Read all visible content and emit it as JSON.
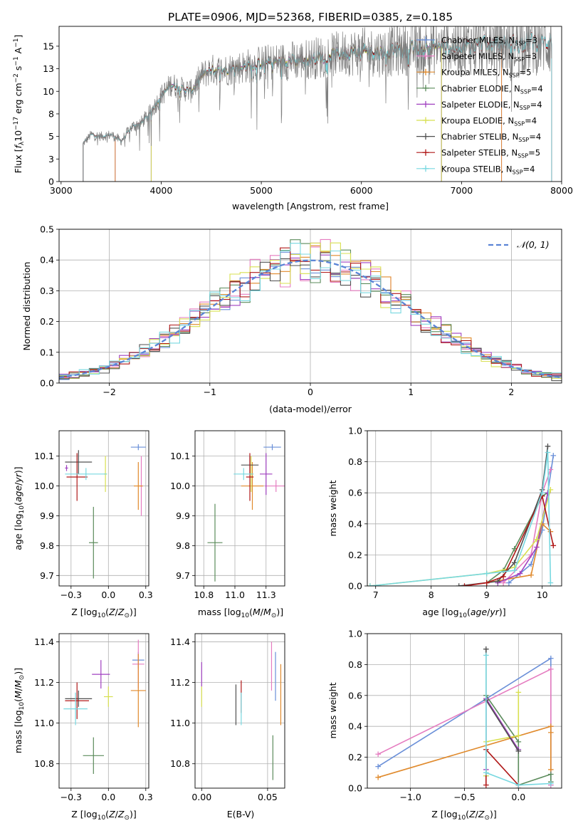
{
  "figure": {
    "title": "PLATE=0906, MJD=52368, FIBERID=0385, z=0.185"
  },
  "colors": {
    "Chabrier MILES": "#6a8fd8",
    "Salpeter MILES": "#e57cc0",
    "Kroupa MILES": "#e08a2c",
    "Chabrier ELODIE": "#5b8b5b",
    "Salpeter ELODIE": "#a040c0",
    "Kroupa ELODIE": "#d8e050",
    "Chabrier STELIB": "#505050",
    "Salpeter STELIB": "#b01818",
    "Kroupa STELIB": "#78d8e0",
    "data": "#808080",
    "normal": "#5b84d6"
  },
  "chart_data": [
    {
      "id": "spectrum",
      "type": "line",
      "xlabel": "wavelength [Angstrom, rest frame]",
      "xlim": [
        2980,
        8000
      ],
      "ylim": [
        0,
        17.2
      ],
      "xticks": [
        3000,
        4000,
        5000,
        6000,
        7000,
        8000
      ],
      "yticks": [
        0.0,
        2.5,
        5.0,
        7.5,
        10.0,
        12.5,
        15.0
      ],
      "legend_location": "upper right",
      "legend": [
        {
          "name": "Chabrier MILES",
          "nssp": "3"
        },
        {
          "name": "Salpeter MILES",
          "nssp": "3"
        },
        {
          "name": "Kroupa MILES",
          "nssp": "5"
        },
        {
          "name": "Chabrier ELODIE",
          "nssp": "4"
        },
        {
          "name": "Salpeter ELODIE",
          "nssp": "4"
        },
        {
          "name": "Kroupa ELODIE",
          "nssp": "4"
        },
        {
          "name": "Chabrier STELIB",
          "nssp": "4"
        },
        {
          "name": "Salpeter STELIB",
          "nssp": "5"
        },
        {
          "name": "Kroupa STELIB",
          "nssp": "4"
        }
      ],
      "model_ranges": {
        "Chabrier MILES": [
          3540,
          7400
        ],
        "Salpeter MILES": [
          3540,
          7400
        ],
        "Kroupa MILES": [
          3540,
          7400
        ],
        "Chabrier ELODIE": [
          3900,
          6800
        ],
        "Salpeter ELODIE": [
          3900,
          6800
        ],
        "Kroupa ELODIE": [
          3900,
          6800
        ],
        "Chabrier STELIB": [
          3220,
          7900
        ],
        "Salpeter STELIB": [
          3220,
          7900
        ],
        "Kroupa STELIB": [
          3220,
          7900
        ]
      },
      "flux_envelope": [
        [
          3220,
          4.2
        ],
        [
          3300,
          5.2
        ],
        [
          3400,
          5.0
        ],
        [
          3500,
          5.2
        ],
        [
          3600,
          4.5
        ],
        [
          3700,
          6.0
        ],
        [
          3800,
          6.5
        ],
        [
          3900,
          7.8
        ],
        [
          4000,
          9.5
        ],
        [
          4100,
          10.8
        ],
        [
          4200,
          10.3
        ],
        [
          4300,
          10.0
        ],
        [
          4400,
          11.7
        ],
        [
          4500,
          12.4
        ],
        [
          4600,
          12.3
        ],
        [
          4800,
          12.7
        ],
        [
          5000,
          13.1
        ],
        [
          5200,
          13.3
        ],
        [
          5400,
          13.5
        ],
        [
          5600,
          13.8
        ],
        [
          5800,
          14.2
        ],
        [
          6000,
          14.4
        ],
        [
          6200,
          14.3
        ],
        [
          6400,
          14.6
        ],
        [
          6600,
          14.8
        ],
        [
          6800,
          14.9
        ],
        [
          7000,
          15.0
        ],
        [
          7200,
          15.2
        ],
        [
          7400,
          15.3
        ],
        [
          7600,
          15.4
        ],
        [
          7900,
          15.5
        ]
      ]
    },
    {
      "id": "residuals",
      "type": "histogram",
      "xlabel": "(data-model)/error",
      "ylabel": "Normed distribution",
      "xlim": [
        -2.5,
        2.5
      ],
      "ylim": [
        0,
        0.5
      ],
      "xticks": [
        -2,
        -1,
        0,
        1,
        2
      ],
      "yticks": [
        0.0,
        0.1,
        0.2,
        0.3,
        0.4,
        0.5
      ],
      "bin_width": 0.1,
      "reference_curve": "normal(0,1)",
      "legend_location": "upper right"
    },
    {
      "id": "age_vs_Z",
      "type": "errorbar",
      "xlabel": "Z [log10(Z/Z⊙)]",
      "ylabel": "age  [log10(age/yr)]",
      "xlim": [
        -0.33,
        0.27
      ],
      "ylim": [
        9.665,
        10.185
      ],
      "xticks": [
        -0.25,
        0.0,
        0.25
      ],
      "yticks": [
        9.7,
        9.8,
        9.9,
        10.0,
        10.1
      ],
      "points": [
        {
          "model": "Chabrier MILES",
          "x": 0.2,
          "xerr": 0.05,
          "y": 10.13,
          "yerr": 0.01
        },
        {
          "model": "Salpeter MILES",
          "x": 0.22,
          "xerr": 0.01,
          "y": 10.0,
          "yerr": 0.1
        },
        {
          "model": "Kroupa MILES",
          "x": 0.2,
          "xerr": 0.03,
          "y": 10.0,
          "yerr": 0.08
        },
        {
          "model": "Chabrier ELODIE",
          "x": -0.1,
          "xerr": 0.03,
          "y": 9.81,
          "yerr": 0.12
        },
        {
          "model": "Salpeter ELODIE",
          "x": -0.28,
          "xerr": 0.01,
          "y": 10.06,
          "yerr": 0.01
        },
        {
          "model": "Kroupa ELODIE",
          "x": -0.02,
          "xerr": 0.01,
          "y": 10.04,
          "yerr": 0.06
        },
        {
          "model": "Chabrier STELIB",
          "x": -0.2,
          "xerr": 0.09,
          "y": 10.08,
          "yerr": 0.04
        },
        {
          "model": "Salpeter STELIB",
          "x": -0.21,
          "xerr": 0.07,
          "y": 10.03,
          "yerr": 0.08
        },
        {
          "model": "Kroupa STELIB",
          "x": -0.15,
          "xerr": 0.14,
          "y": 10.04,
          "yerr": 0.02
        }
      ]
    },
    {
      "id": "age_vs_mass",
      "type": "errorbar",
      "xlabel": "mass [log10(M/M⊙)]",
      "xlim": [
        10.68,
        11.4
      ],
      "ylim": [
        9.665,
        10.185
      ],
      "xticks": [
        10.75,
        11.0,
        11.25
      ],
      "yticks": [
        9.7,
        9.8,
        9.9,
        10.0,
        10.1
      ],
      "points": [
        {
          "model": "Chabrier MILES",
          "x": 11.3,
          "xerr": 0.07,
          "y": 10.13,
          "yerr": 0.01
        },
        {
          "model": "Salpeter MILES",
          "x": 11.33,
          "xerr": 0.09,
          "y": 10.0,
          "yerr": 0.02
        },
        {
          "model": "Kroupa MILES",
          "x": 11.14,
          "xerr": 0.09,
          "y": 10.0,
          "yerr": 0.08
        },
        {
          "model": "Chabrier ELODIE",
          "x": 10.84,
          "xerr": 0.06,
          "y": 9.81,
          "yerr": 0.13
        },
        {
          "model": "Salpeter ELODIE",
          "x": 11.25,
          "xerr": 0.05,
          "y": 10.04,
          "yerr": 0.07
        },
        {
          "model": "Kroupa ELODIE",
          "x": 11.13,
          "xerr": 0.01,
          "y": 10.04,
          "yerr": 0.06
        },
        {
          "model": "Chabrier STELIB",
          "x": 11.12,
          "xerr": 0.07,
          "y": 10.07,
          "yerr": 0.03
        },
        {
          "model": "Salpeter STELIB",
          "x": 11.12,
          "xerr": 0.03,
          "y": 10.03,
          "yerr": 0.08
        },
        {
          "model": "Kroupa STELIB",
          "x": 11.07,
          "xerr": 0.08,
          "y": 10.04,
          "yerr": 0.02
        }
      ]
    },
    {
      "id": "mass_vs_Z",
      "type": "errorbar",
      "xlabel": "Z [log10(Z/Z⊙)]",
      "ylabel": "mass [log10(M/M⊙)]",
      "xlim": [
        -0.33,
        0.27
      ],
      "ylim": [
        10.68,
        11.44
      ],
      "xticks": [
        -0.25,
        0.0,
        0.25
      ],
      "yticks": [
        10.8,
        11.0,
        11.2,
        11.4
      ],
      "points": [
        {
          "model": "Chabrier MILES",
          "x": 0.2,
          "xerr": 0.04,
          "y": 11.31,
          "yerr": 0.04
        },
        {
          "model": "Salpeter MILES",
          "x": 0.2,
          "xerr": 0.04,
          "y": 11.29,
          "yerr": 0.12
        },
        {
          "model": "Kroupa MILES",
          "x": 0.2,
          "xerr": 0.05,
          "y": 11.16,
          "yerr": 0.18
        },
        {
          "model": "Chabrier ELODIE",
          "x": -0.1,
          "xerr": 0.07,
          "y": 10.84,
          "yerr": 0.09
        },
        {
          "model": "Salpeter ELODIE",
          "x": -0.05,
          "xerr": 0.06,
          "y": 11.24,
          "yerr": 0.07
        },
        {
          "model": "Kroupa ELODIE",
          "x": 0.0,
          "xerr": 0.03,
          "y": 11.13,
          "yerr": 0.05
        },
        {
          "model": "Chabrier STELIB",
          "x": -0.2,
          "xerr": 0.09,
          "y": 11.12,
          "yerr": 0.04
        },
        {
          "model": "Salpeter STELIB",
          "x": -0.21,
          "xerr": 0.08,
          "y": 11.11,
          "yerr": 0.09
        },
        {
          "model": "Kroupa STELIB",
          "x": -0.22,
          "xerr": 0.08,
          "y": 11.07,
          "yerr": 0.08
        }
      ]
    },
    {
      "id": "mass_vs_ebv",
      "type": "errorbar",
      "xlabel": "E(B-V)",
      "xlim": [
        -0.005,
        0.063
      ],
      "ylim": [
        10.68,
        11.44
      ],
      "xticks": [
        0.0,
        0.05
      ],
      "yticks": [
        10.8,
        11.0,
        11.2,
        11.4
      ],
      "points": [
        {
          "model": "Chabrier MILES",
          "x": 0.056,
          "xerr": 0.0,
          "y": 11.23,
          "yerr": 0.12
        },
        {
          "model": "Salpeter MILES",
          "x": 0.053,
          "xerr": 0.0,
          "y": 11.28,
          "yerr": 0.12
        },
        {
          "model": "Kroupa MILES",
          "x": 0.06,
          "xerr": 0.0,
          "y": 11.14,
          "yerr": 0.15
        },
        {
          "model": "Chabrier ELODIE",
          "x": 0.054,
          "xerr": 0.0,
          "y": 10.83,
          "yerr": 0.11
        },
        {
          "model": "Salpeter ELODIE",
          "x": 0.0,
          "xerr": 0.0,
          "y": 11.24,
          "yerr": 0.06
        },
        {
          "model": "Kroupa ELODIE",
          "x": 0.0,
          "xerr": 0.0,
          "y": 11.13,
          "yerr": 0.05
        },
        {
          "model": "Chabrier STELIB",
          "x": 0.026,
          "xerr": 0.0,
          "y": 11.09,
          "yerr": 0.1
        },
        {
          "model": "Salpeter STELIB",
          "x": 0.03,
          "xerr": 0.0,
          "y": 11.13,
          "yerr": 0.08
        },
        {
          "model": "Kroupa STELIB",
          "x": 0.03,
          "xerr": 0.0,
          "y": 11.07,
          "yerr": 0.08
        }
      ]
    },
    {
      "id": "weight_vs_age",
      "type": "line",
      "xlabel": "age  [log10(age/yr)]",
      "ylabel": "mass weight",
      "xlim": [
        6.85,
        10.35
      ],
      "ylim": [
        0,
        1.0
      ],
      "xticks": [
        7,
        8,
        9,
        10
      ],
      "yticks": [
        0.0,
        0.2,
        0.4,
        0.6,
        0.8,
        1.0
      ],
      "series": [
        {
          "model": "Chabrier MILES",
          "x": [
            9.4,
            9.8,
            10.0,
            10.2
          ],
          "y": [
            0.02,
            0.14,
            0.36,
            0.84
          ]
        },
        {
          "model": "Salpeter MILES",
          "x": [
            9.3,
            9.8,
            10.0,
            10.15
          ],
          "y": [
            0.02,
            0.2,
            0.6,
            0.75
          ]
        },
        {
          "model": "Kroupa MILES",
          "x": [
            9.0,
            9.8,
            10.0,
            10.15
          ],
          "y": [
            0.02,
            0.07,
            0.4,
            0.35
          ]
        },
        {
          "model": "Chabrier ELODIE",
          "x": [
            9.0,
            9.3,
            9.5,
            10.0,
            10.1
          ],
          "y": [
            0.02,
            0.1,
            0.24,
            0.58,
            0.6
          ]
        },
        {
          "model": "Salpeter ELODIE",
          "x": [
            9.2,
            9.6,
            9.9,
            10.1
          ],
          "y": [
            0.02,
            0.08,
            0.25,
            0.6
          ]
        },
        {
          "model": "Kroupa ELODIE",
          "x": [
            6.9,
            9.0,
            9.5,
            9.9,
            10.15
          ],
          "y": [
            0.0,
            0.08,
            0.12,
            0.3,
            0.62
          ]
        },
        {
          "model": "Chabrier STELIB",
          "x": [
            8.5,
            9.2,
            9.5,
            10.0,
            10.1
          ],
          "y": [
            0.0,
            0.03,
            0.15,
            0.62,
            0.9
          ]
        },
        {
          "model": "Salpeter STELIB",
          "x": [
            8.6,
            9.0,
            9.3,
            10.0,
            10.2
          ],
          "y": [
            0.0,
            0.02,
            0.06,
            0.58,
            0.26
          ]
        },
        {
          "model": "Kroupa STELIB",
          "x": [
            6.9,
            9.0,
            9.5,
            10.0,
            10.1,
            10.15
          ],
          "y": [
            0.0,
            0.08,
            0.1,
            0.6,
            0.86,
            0.02
          ]
        }
      ]
    },
    {
      "id": "weight_vs_Z",
      "type": "line",
      "xlabel": "Z [log10(Z/Z⊙)]",
      "ylabel": "mass weight",
      "xlim": [
        -1.4,
        0.4
      ],
      "ylim": [
        0,
        1.0
      ],
      "xticks": [
        -1.0,
        -0.5,
        0.0
      ],
      "yticks": [
        0.0,
        0.2,
        0.4,
        0.6,
        0.8,
        1.0
      ],
      "series": [
        {
          "model": "Chabrier MILES",
          "x": [
            -1.3,
            0.3,
            0.3
          ],
          "y": [
            0.14,
            0.84,
            0.02
          ]
        },
        {
          "model": "Salpeter MILES",
          "x": [
            -1.3,
            0.3,
            0.3
          ],
          "y": [
            0.22,
            0.77,
            0.02
          ]
        },
        {
          "model": "Kroupa MILES",
          "x": [
            -1.3,
            0.3,
            0.3,
            0.3
          ],
          "y": [
            0.07,
            0.4,
            0.36,
            0.12
          ]
        },
        {
          "model": "Chabrier ELODIE",
          "x": [
            -0.3,
            -0.3,
            0.0,
            0.0,
            0.3,
            0.3
          ],
          "y": [
            0.08,
            0.6,
            0.3,
            0.02,
            0.09,
            0.04
          ]
        },
        {
          "model": "Salpeter ELODIE",
          "x": [
            -0.3,
            -0.3,
            0.0
          ],
          "y": [
            0.12,
            0.58,
            0.25
          ]
        },
        {
          "model": "Kroupa ELODIE",
          "x": [
            -0.3,
            -0.3,
            0.0,
            0.0
          ],
          "y": [
            0.08,
            0.3,
            0.34,
            0.62
          ]
        },
        {
          "model": "Chabrier STELIB",
          "x": [
            -0.3,
            -0.3,
            0.0
          ],
          "y": [
            0.9,
            0.57,
            0.24
          ]
        },
        {
          "model": "Salpeter STELIB",
          "x": [
            -0.3,
            -0.3,
            0.0,
            0.0
          ],
          "y": [
            0.02,
            0.25,
            0.02,
            0.0
          ]
        },
        {
          "model": "Kroupa STELIB",
          "x": [
            -0.3,
            -0.3,
            0.0,
            0.3
          ],
          "y": [
            0.86,
            0.1,
            0.02,
            0.03
          ]
        }
      ]
    }
  ]
}
